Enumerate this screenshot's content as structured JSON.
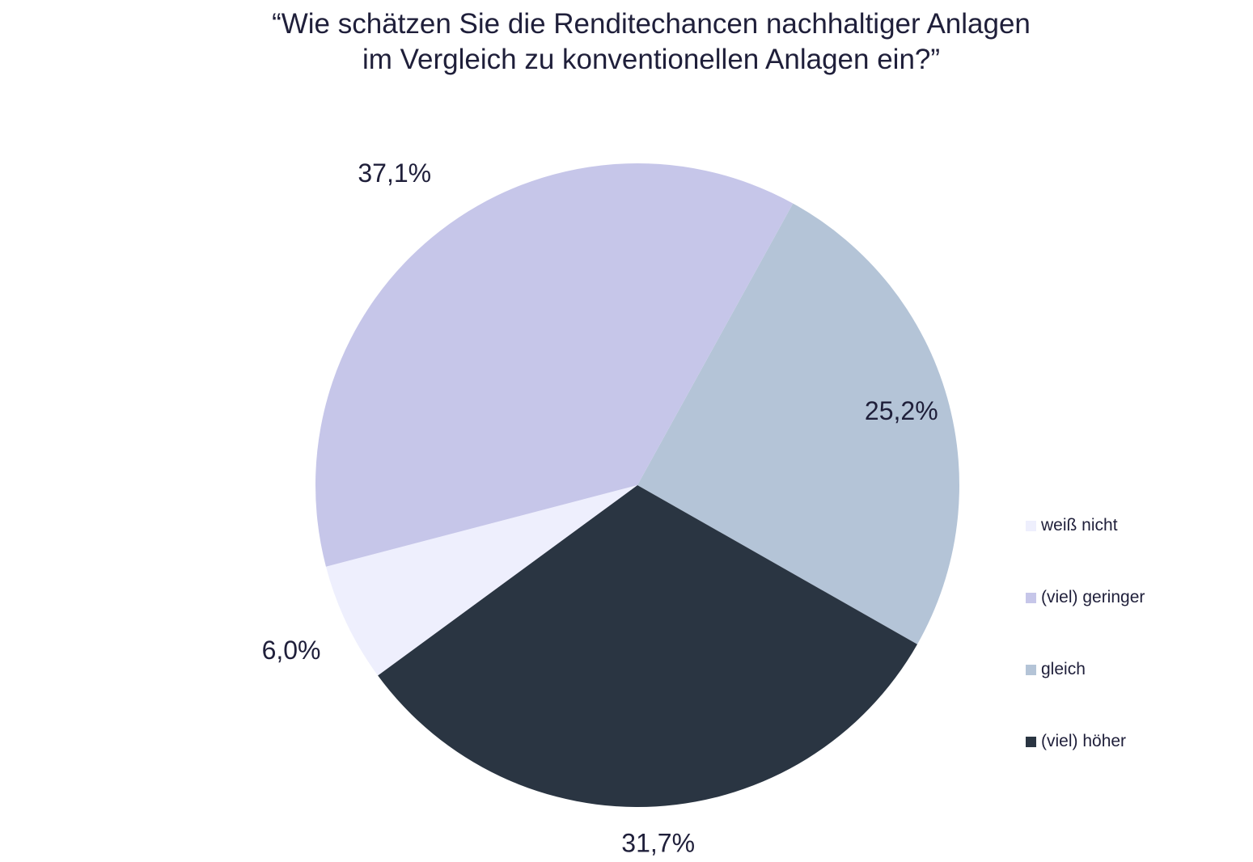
{
  "chart_data": {
    "type": "pie",
    "title_line1": "“Wie schätzen Sie die Renditechancen nachhaltiger Anlagen",
    "title_line2": "im Vergleich zu konventionellen Anlagen ein?”",
    "slices": [
      {
        "name": "gleich",
        "value": 25.2,
        "label": "25,2%",
        "color": "#b4c4d7"
      },
      {
        "name": "(viel) höher",
        "value": 31.7,
        "label": "31,7%",
        "color": "#2a3542"
      },
      {
        "name": "weiß nicht",
        "value": 6.0,
        "label": "6,0%",
        "color": "#eeeffd"
      },
      {
        "name": "(viel) geringer",
        "value": 37.1,
        "label": "37,1%",
        "color": "#c6c6e9"
      }
    ],
    "legend": [
      {
        "name": "weiß nicht",
        "color": "#eeeffd"
      },
      {
        "name": "(viel) geringer",
        "color": "#c6c6e9"
      },
      {
        "name": "gleich",
        "color": "#b4c4d7"
      },
      {
        "name": "(viel) höher",
        "color": "#2a3542"
      }
    ],
    "legend_position": "right"
  }
}
